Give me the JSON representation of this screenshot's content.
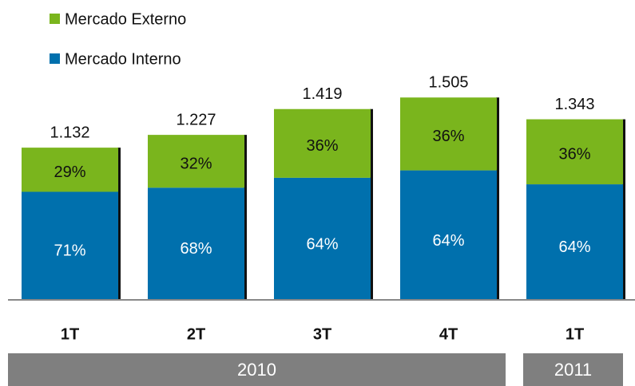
{
  "chart_data": {
    "type": "stacked_bar_percent",
    "categories": [
      "1T",
      "2T",
      "3T",
      "4T",
      "1T"
    ],
    "groups": [
      {
        "label": "2010",
        "count": 4
      },
      {
        "label": "2011",
        "count": 1
      }
    ],
    "totals": [
      1.132,
      1.227,
      1.419,
      1.505,
      1.343
    ],
    "series": [
      {
        "name": "Mercado Interno",
        "color": "#0070ad",
        "values": [
          71,
          68,
          64,
          64,
          64
        ],
        "value_labels": [
          "71%",
          "68%",
          "64%",
          "64%",
          "64%"
        ]
      },
      {
        "name": "Mercado Externo",
        "color": "#7ab51d",
        "values": [
          29,
          32,
          36,
          36,
          36
        ],
        "value_labels": [
          "29%",
          "32%",
          "36%",
          "36%",
          "36%"
        ]
      }
    ],
    "ylim": [
      0,
      2.23
    ]
  }
}
